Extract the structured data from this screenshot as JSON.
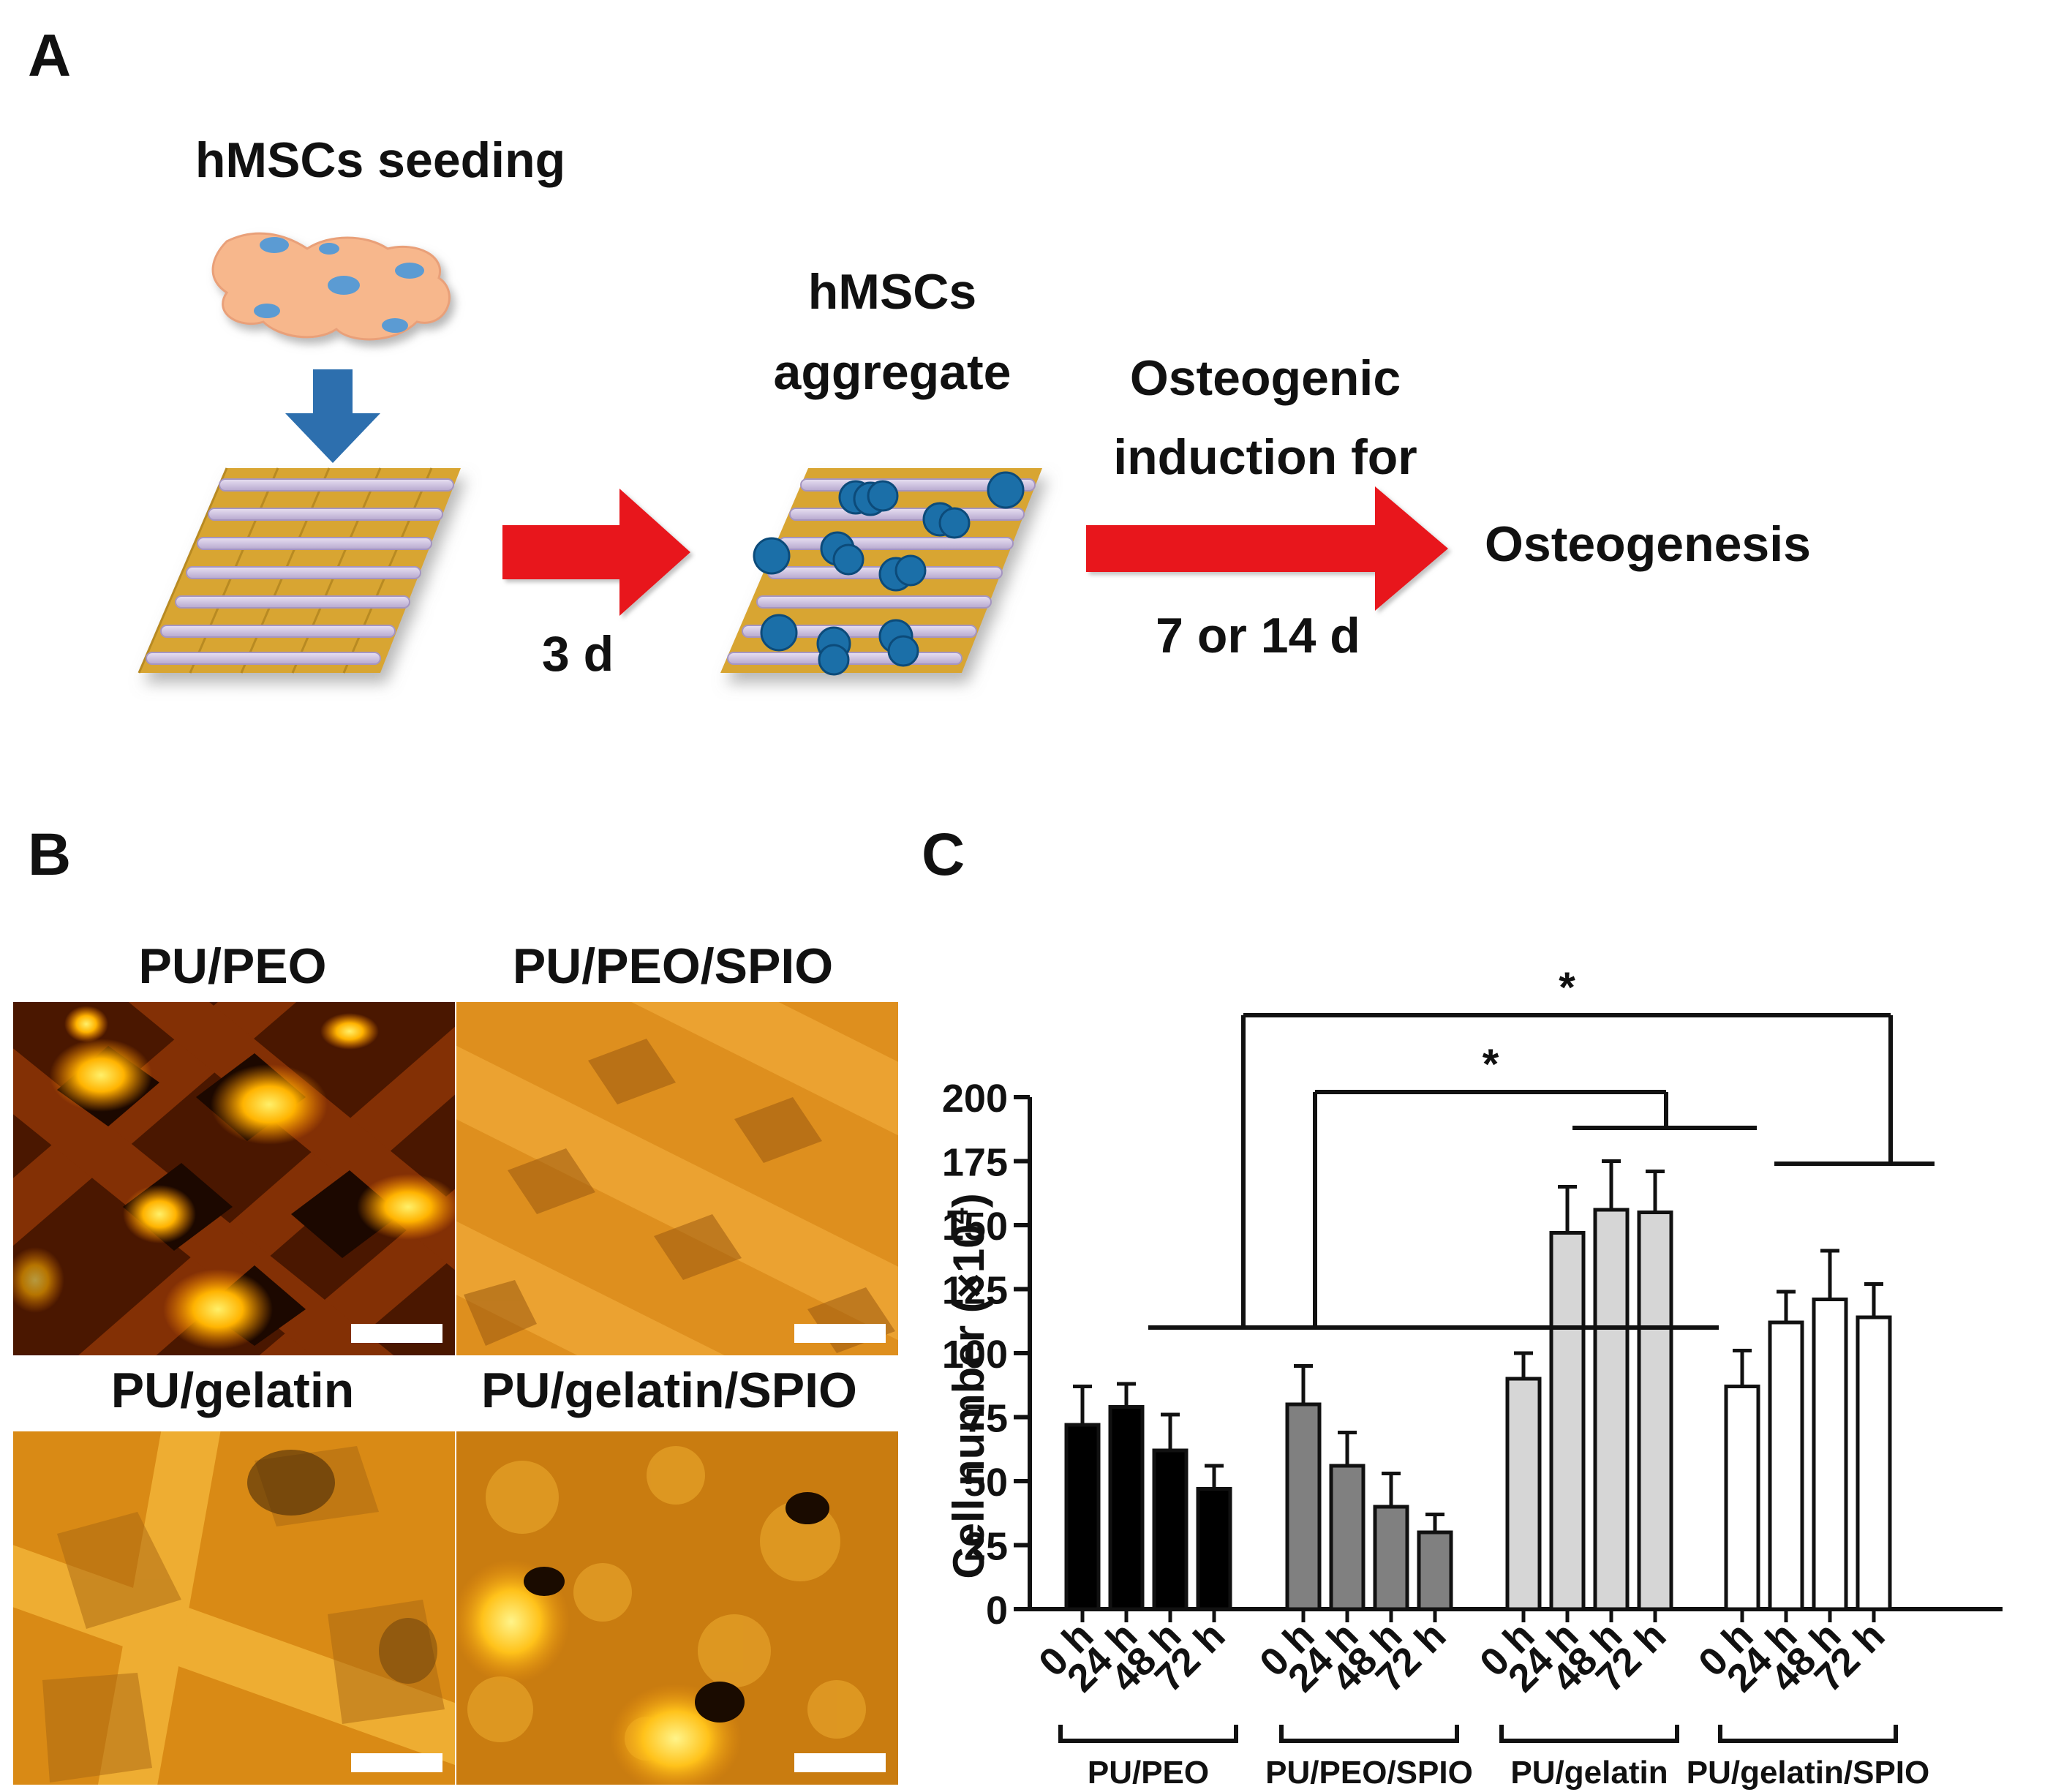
{
  "panels": {
    "a": "A",
    "b": "B",
    "c": "C"
  },
  "schematic": {
    "seeding_label": "hMSCs seeding",
    "aggregate_label_1": "hMSCs",
    "aggregate_label_2": "aggregate",
    "step1_time": "3 d",
    "induction_label_1": "Osteogenic",
    "induction_label_2": "induction for",
    "step2_time": "7 or 14 d",
    "outcome_label": "Osteogenesis",
    "colors": {
      "arrow_red": "#e8141b",
      "seed_arrow_blue": "#2d6fae",
      "cell_blue": "#1b6fa8",
      "rod_purple": "#c9bcdc",
      "rod_gold": "#d8a531"
    }
  },
  "micrographs": [
    {
      "label": "PU/PEO"
    },
    {
      "label": "PU/PEO/SPIO"
    },
    {
      "label": "PU/gelatin"
    },
    {
      "label": "PU/gelatin/SPIO"
    }
  ],
  "chart_data": {
    "type": "bar",
    "ylabel_main": "Cell number (×10",
    "ylabel_sup": "4",
    "ylabel_close": ")",
    "ylim": [
      0,
      200
    ],
    "yticks": [
      "0",
      "25",
      "50",
      "75",
      "100",
      "125",
      "150",
      "175",
      "200"
    ],
    "categories": [
      "0 h",
      "24 h",
      "48 h",
      "72 h"
    ],
    "groups": [
      "PU/PEO",
      "PU/PEO/SPIO",
      "PU/gelatin",
      "PU/gelatin/SPIO"
    ],
    "series": [
      {
        "name": "PU/PEO",
        "color": "#000000",
        "values": [
          72,
          79,
          62,
          47
        ],
        "errors": [
          15,
          9,
          14,
          9
        ]
      },
      {
        "name": "PU/PEO/SPIO",
        "color": "#808080",
        "values": [
          80,
          56,
          40,
          30
        ],
        "errors": [
          15,
          13,
          13,
          7
        ]
      },
      {
        "name": "PU/gelatin",
        "color": "#d6d6d6",
        "values": [
          90,
          147,
          156,
          155
        ],
        "errors": [
          10,
          18,
          19,
          16
        ]
      },
      {
        "name": "PU/gelatin/SPIO",
        "color": "#ffffff",
        "values": [
          87,
          112,
          121,
          114
        ],
        "errors": [
          14,
          12,
          19,
          13
        ]
      }
    ],
    "significance": [
      "*",
      "*"
    ]
  }
}
